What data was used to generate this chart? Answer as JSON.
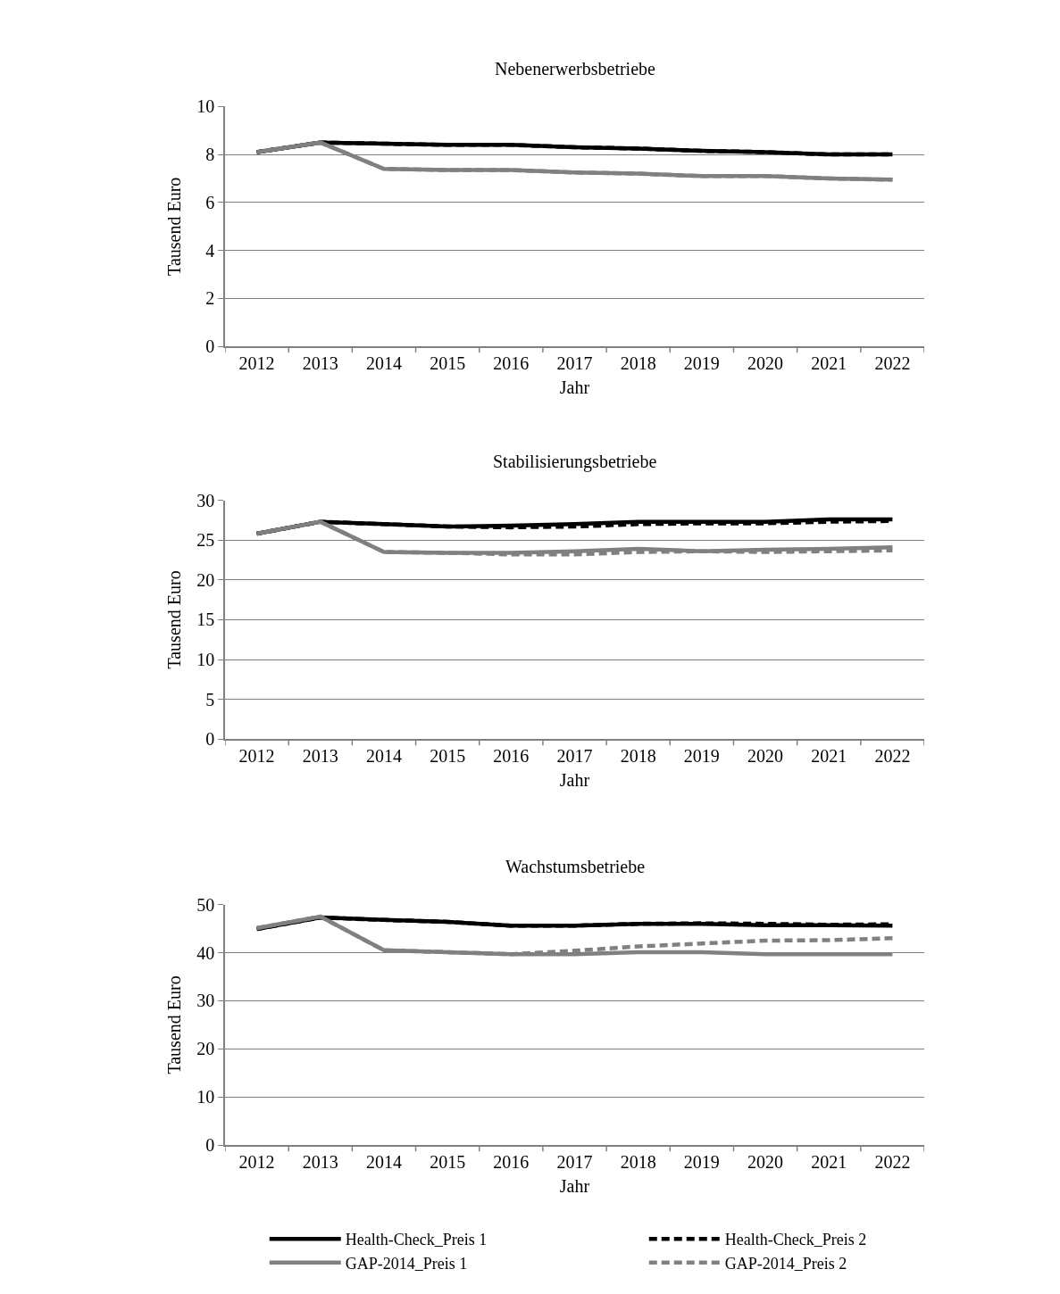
{
  "chart_data": [
    {
      "type": "line",
      "title": "Nebenerwerbsbetriebe",
      "xlabel": "Jahr",
      "ylabel": "Tausend Euro",
      "categories": [
        "2012",
        "2013",
        "2014",
        "2015",
        "2016",
        "2017",
        "2018",
        "2019",
        "2020",
        "2021",
        "2022"
      ],
      "ylim": [
        0,
        10
      ],
      "yticks": [
        0,
        2,
        4,
        6,
        8,
        10
      ],
      "grid": "y",
      "legend": false,
      "marker": "none",
      "series": [
        {
          "color": "#000000",
          "line_style": "dashed",
          "values": [
            8.1,
            8.5,
            8.45,
            8.4,
            8.4,
            8.3,
            8.25,
            8.15,
            8.1,
            8.0,
            8.0
          ]
        },
        {
          "color": "#808080",
          "line_style": "dashed",
          "values": [
            8.1,
            8.5,
            7.4,
            7.35,
            7.35,
            7.25,
            7.2,
            7.1,
            7.1,
            7.0,
            6.95
          ]
        },
        {
          "color": "#000000",
          "line_style": "solid",
          "values": [
            8.1,
            8.5,
            8.45,
            8.4,
            8.4,
            8.3,
            8.25,
            8.15,
            8.1,
            8.0,
            8.0
          ]
        },
        {
          "color": "#808080",
          "line_style": "solid",
          "values": [
            8.1,
            8.5,
            7.4,
            7.35,
            7.35,
            7.25,
            7.2,
            7.1,
            7.1,
            7.0,
            6.95
          ]
        }
      ]
    },
    {
      "type": "line",
      "title": "Stabilisierungsbetriebe",
      "xlabel": "Jahr",
      "ylabel": "Tausend Euro",
      "categories": [
        "2012",
        "2013",
        "2014",
        "2015",
        "2016",
        "2017",
        "2018",
        "2019",
        "2020",
        "2021",
        "2022"
      ],
      "ylim": [
        0,
        30
      ],
      "yticks": [
        0,
        5,
        10,
        15,
        20,
        25,
        30
      ],
      "grid": "y",
      "legend": false,
      "marker": "none",
      "series": [
        {
          "color": "#000000",
          "line_style": "dashed",
          "values": [
            25.8,
            27.3,
            27.0,
            26.7,
            26.6,
            26.7,
            27.0,
            27.1,
            27.1,
            27.3,
            27.4
          ]
        },
        {
          "color": "#808080",
          "line_style": "dashed",
          "values": [
            25.8,
            27.3,
            23.5,
            23.4,
            23.2,
            23.2,
            23.5,
            23.6,
            23.5,
            23.6,
            23.7
          ]
        },
        {
          "color": "#000000",
          "line_style": "solid",
          "values": [
            25.8,
            27.3,
            27.0,
            26.7,
            26.8,
            27.0,
            27.3,
            27.3,
            27.3,
            27.6,
            27.6
          ]
        },
        {
          "color": "#808080",
          "line_style": "solid",
          "values": [
            25.8,
            27.3,
            23.5,
            23.4,
            23.4,
            23.6,
            23.9,
            23.6,
            23.8,
            23.9,
            24.1
          ]
        }
      ]
    },
    {
      "type": "line",
      "title": "Wachstumsbetriebe",
      "xlabel": "Jahr",
      "ylabel": "Tausend Euro",
      "categories": [
        "2012",
        "2013",
        "2014",
        "2015",
        "2016",
        "2017",
        "2018",
        "2019",
        "2020",
        "2021",
        "2022"
      ],
      "ylim": [
        0,
        50
      ],
      "yticks": [
        0,
        10,
        20,
        30,
        40,
        50
      ],
      "grid": "y",
      "legend": "bottom",
      "marker": "none",
      "series": [
        {
          "name": "Health-Check_Preis 1",
          "color": "#000000",
          "line_style": "solid",
          "values": [
            44.9,
            47.3,
            46.8,
            46.4,
            45.6,
            45.6,
            46.0,
            46.0,
            45.7,
            45.7,
            45.6
          ]
        },
        {
          "name": "Health-Check_Preis 2",
          "color": "#000000",
          "line_style": "dashed",
          "values": [
            44.9,
            47.3,
            46.8,
            46.4,
            45.6,
            45.6,
            46.0,
            46.1,
            46.0,
            45.8,
            45.9
          ]
        },
        {
          "name": "GAP-2014_Preis 1",
          "color": "#808080",
          "line_style": "solid",
          "values": [
            45.1,
            47.5,
            40.5,
            40.1,
            39.7,
            39.7,
            40.1,
            40.1,
            39.7,
            39.7,
            39.7
          ]
        },
        {
          "name": "GAP-2014_Preis 2",
          "color": "#808080",
          "line_style": "dashed",
          "values": [
            45.1,
            47.5,
            40.5,
            40.1,
            39.7,
            40.4,
            41.3,
            41.9,
            42.5,
            42.6,
            43.0
          ]
        }
      ]
    }
  ]
}
